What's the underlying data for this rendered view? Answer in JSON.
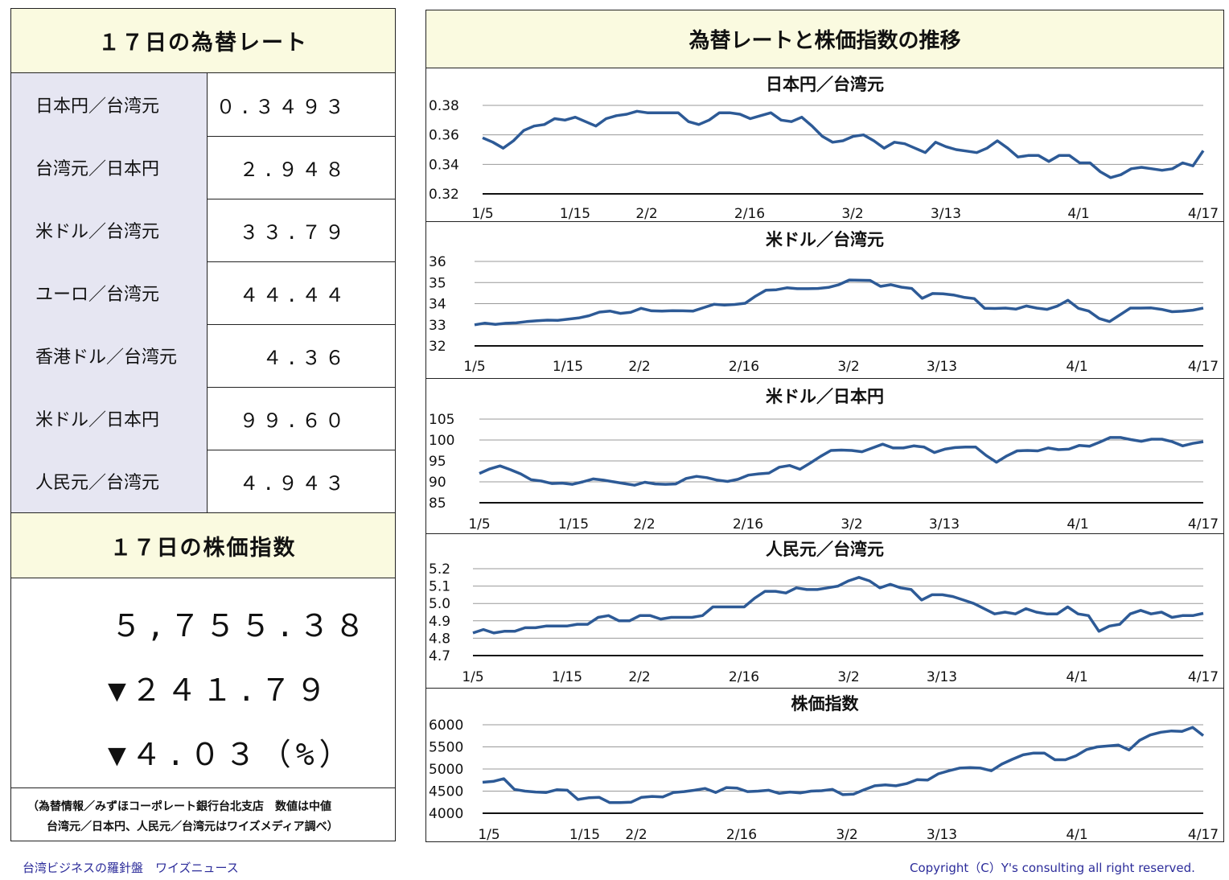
{
  "rates_header": "１７日の為替レート",
  "rates": [
    {
      "label": "日本円／台湾元",
      "value": "０.３４９３"
    },
    {
      "label": "台湾元／日本円",
      "value": "２.９４８"
    },
    {
      "label": "米ドル／台湾元",
      "value": "３３.７９"
    },
    {
      "label": "ユーロ／台湾元",
      "value": "４４.４４"
    },
    {
      "label": "香港ドル／台湾元",
      "value": "４.３６"
    },
    {
      "label": "米ドル／日本円",
      "value": "９９.６０"
    },
    {
      "label": "人民元／台湾元",
      "value": "４.９４３"
    }
  ],
  "stock_header": "１７日の株価指数",
  "stock": {
    "index": "５,７５５.３８",
    "change": "▼２４１.７９",
    "pct": "▼４.０３（%）"
  },
  "note": {
    "line1": "（為替情報／みずほコーポレート銀行台北支店　数値は中値",
    "line2": "台湾元／日本円、人民元／台湾元はワイズメディア調べ）"
  },
  "charts_header": "為替レートと株価指数の推移",
  "footer": {
    "left": "台湾ビジネスの羅針盤　ワイズニュース",
    "right": "Copyright（C）Y's consulting all right reserved."
  },
  "colors": {
    "line": "#2d5a96",
    "header_bg": "#fafae0",
    "label_bg": "#e6e6f2",
    "footer_text": "#2c2c9a"
  },
  "chart_data": [
    {
      "type": "line",
      "title": "日本円／台湾元",
      "ylim": [
        0.32,
        0.38
      ],
      "yticks": [
        "0.38",
        "0.36",
        "0.34",
        "0.32"
      ],
      "xtick_labels": [
        "1/5",
        "1/15",
        "2/2",
        "2/16",
        "3/2",
        "3/13",
        "4/1",
        "4/17"
      ],
      "values": [
        0.358,
        0.355,
        0.351,
        0.356,
        0.363,
        0.366,
        0.367,
        0.371,
        0.37,
        0.372,
        0.369,
        0.366,
        0.371,
        0.373,
        0.374,
        0.376,
        0.375,
        0.375,
        0.375,
        0.375,
        0.369,
        0.367,
        0.37,
        0.375,
        0.375,
        0.374,
        0.371,
        0.373,
        0.375,
        0.37,
        0.369,
        0.372,
        0.366,
        0.359,
        0.355,
        0.356,
        0.359,
        0.36,
        0.356,
        0.351,
        0.355,
        0.354,
        0.351,
        0.348,
        0.355,
        0.352,
        0.35,
        0.349,
        0.348,
        0.351,
        0.356,
        0.351,
        0.345,
        0.346,
        0.346,
        0.342,
        0.346,
        0.346,
        0.341,
        0.341,
        0.335,
        0.331,
        0.333,
        0.337,
        0.338,
        0.337,
        0.336,
        0.337,
        0.341,
        0.339,
        0.3493
      ]
    },
    {
      "type": "line",
      "title": "米ドル／台湾元",
      "ylim": [
        32,
        36
      ],
      "yticks": [
        "36",
        "35",
        "34",
        "33",
        "32"
      ],
      "xtick_labels": [
        "1/5",
        "1/15",
        "2/2",
        "2/16",
        "3/2",
        "3/13",
        "4/1",
        "4/17"
      ],
      "values": [
        33.0,
        33.08,
        33.02,
        33.07,
        33.09,
        33.15,
        33.19,
        33.22,
        33.21,
        33.27,
        33.32,
        33.43,
        33.6,
        33.65,
        33.54,
        33.59,
        33.78,
        33.66,
        33.65,
        33.67,
        33.66,
        33.65,
        33.81,
        33.97,
        33.93,
        33.96,
        34.02,
        34.36,
        34.64,
        34.66,
        34.75,
        34.71,
        34.71,
        34.72,
        34.77,
        34.9,
        35.12,
        35.11,
        35.1,
        34.82,
        34.9,
        34.78,
        34.72,
        34.25,
        34.48,
        34.47,
        34.41,
        34.3,
        34.24,
        33.78,
        33.77,
        33.79,
        33.74,
        33.89,
        33.79,
        33.73,
        33.89,
        34.16,
        33.78,
        33.65,
        33.3,
        33.15,
        33.47,
        33.79,
        33.79,
        33.8,
        33.73,
        33.62,
        33.64,
        33.69,
        33.79
      ]
    },
    {
      "type": "line",
      "title": "米ドル／日本円",
      "ylim": [
        85,
        105
      ],
      "yticks": [
        "105",
        "100",
        "95",
        "90",
        "85"
      ],
      "xtick_labels": [
        "1/5",
        "1/15",
        "2/2",
        "2/16",
        "3/2",
        "3/13",
        "4/1",
        "4/17"
      ],
      "values": [
        92.0,
        93.1,
        93.8,
        92.9,
        91.9,
        90.5,
        90.2,
        89.6,
        89.7,
        89.4,
        90.0,
        90.7,
        90.4,
        90.0,
        89.6,
        89.2,
        89.9,
        89.5,
        89.4,
        89.5,
        90.8,
        91.3,
        91.0,
        90.4,
        90.1,
        90.6,
        91.6,
        91.9,
        92.1,
        93.5,
        93.9,
        93.0,
        94.5,
        96.1,
        97.5,
        97.6,
        97.5,
        97.2,
        98.1,
        99.0,
        98.1,
        98.1,
        98.6,
        98.3,
        97.0,
        97.8,
        98.2,
        98.3,
        98.3,
        96.3,
        94.7,
        96.2,
        97.4,
        97.5,
        97.4,
        98.1,
        97.7,
        97.8,
        98.7,
        98.5,
        99.5,
        100.6,
        100.6,
        100.1,
        99.7,
        100.2,
        100.2,
        99.6,
        98.6,
        99.2,
        99.6
      ]
    },
    {
      "type": "line",
      "title": "人民元／台湾元",
      "ylim": [
        4.7,
        5.2
      ],
      "yticks": [
        "5.2",
        "5.1",
        "5.0",
        "4.9",
        "4.8",
        "4.7"
      ],
      "xtick_labels": [
        "1/5",
        "1/15",
        "2/2",
        "2/16",
        "3/2",
        "3/13",
        "4/1",
        "4/17"
      ],
      "values": [
        4.83,
        4.85,
        4.83,
        4.84,
        4.84,
        4.86,
        4.86,
        4.87,
        4.87,
        4.87,
        4.88,
        4.88,
        4.92,
        4.93,
        4.9,
        4.9,
        4.93,
        4.93,
        4.91,
        4.92,
        4.92,
        4.92,
        4.93,
        4.98,
        4.98,
        4.98,
        4.98,
        5.03,
        5.07,
        5.07,
        5.06,
        5.09,
        5.08,
        5.08,
        5.09,
        5.1,
        5.13,
        5.15,
        5.13,
        5.09,
        5.11,
        5.09,
        5.08,
        5.02,
        5.05,
        5.05,
        5.04,
        5.02,
        5.0,
        4.97,
        4.94,
        4.95,
        4.94,
        4.97,
        4.95,
        4.94,
        4.94,
        4.98,
        4.94,
        4.93,
        4.84,
        4.87,
        4.88,
        4.94,
        4.96,
        4.94,
        4.95,
        4.92,
        4.93,
        4.93,
        4.943
      ]
    },
    {
      "type": "line",
      "title": "株価指数",
      "ylim": [
        4000,
        6000
      ],
      "yticks": [
        "6000",
        "5500",
        "5000",
        "4500",
        "4000"
      ],
      "xtick_labels": [
        "1/5",
        "1/15",
        "2/2",
        "2/16",
        "3/2",
        "3/13",
        "4/1",
        "4/17"
      ],
      "values": [
        4700,
        4720,
        4780,
        4540,
        4500,
        4480,
        4470,
        4530,
        4520,
        4310,
        4350,
        4360,
        4240,
        4240,
        4250,
        4360,
        4380,
        4370,
        4470,
        4490,
        4520,
        4560,
        4470,
        4580,
        4570,
        4490,
        4500,
        4520,
        4450,
        4480,
        4460,
        4500,
        4510,
        4540,
        4420,
        4430,
        4530,
        4620,
        4640,
        4620,
        4670,
        4760,
        4750,
        4890,
        4960,
        5020,
        5030,
        5020,
        4960,
        5110,
        5220,
        5320,
        5360,
        5360,
        5210,
        5210,
        5300,
        5440,
        5500,
        5520,
        5540,
        5430,
        5650,
        5770,
        5830,
        5860,
        5850,
        5940,
        5755
      ]
    }
  ]
}
